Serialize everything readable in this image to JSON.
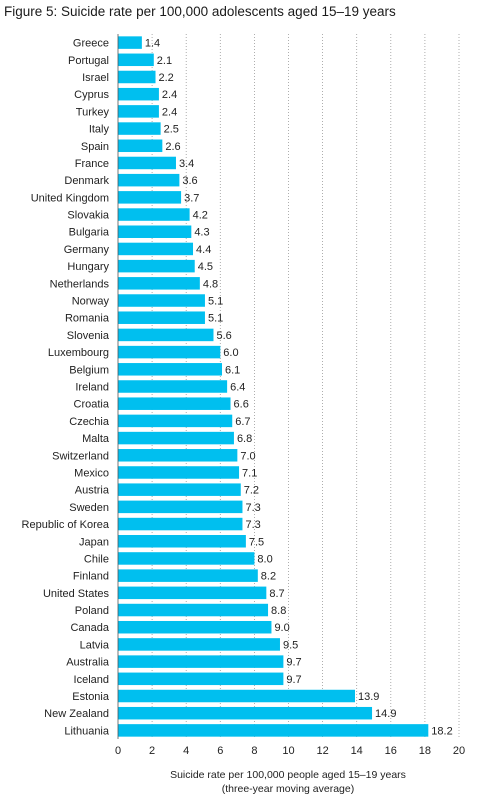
{
  "chart_data": {
    "type": "bar",
    "orientation": "horizontal",
    "title": "Figure 5: Suicide rate per 100,000 adolescents aged 15–19 years",
    "xlabel": "Suicide rate per 100,000 people aged 15–19 years",
    "xlabel_note": "(three-year moving average)",
    "xlim": [
      0,
      20
    ],
    "xticks": [
      "0",
      "2",
      "4",
      "6",
      "8",
      "10",
      "12",
      "14",
      "16",
      "18",
      "20"
    ],
    "grid": "vertical dotted",
    "bar_color": "#00BFEF",
    "categories": [
      "Greece",
      "Portugal",
      "Israel",
      "Cyprus",
      "Turkey",
      "Italy",
      "Spain",
      "France",
      "Denmark",
      "United Kingdom",
      "Slovakia",
      "Bulgaria",
      "Germany",
      "Hungary",
      "Netherlands",
      "Norway",
      "Romania",
      "Slovenia",
      "Luxembourg",
      "Belgium",
      "Ireland",
      "Croatia",
      "Czechia",
      "Malta",
      "Switzerland",
      "Mexico",
      "Austria",
      "Sweden",
      "Republic of Korea",
      "Japan",
      "Chile",
      "Finland",
      "United States",
      "Poland",
      "Canada",
      "Latvia",
      "Australia",
      "Iceland",
      "Estonia",
      "New Zealand",
      "Lithuania"
    ],
    "values": [
      1.4,
      2.1,
      2.2,
      2.4,
      2.4,
      2.5,
      2.6,
      3.4,
      3.6,
      3.7,
      4.2,
      4.3,
      4.4,
      4.5,
      4.8,
      5.1,
      5.1,
      5.6,
      6.0,
      6.1,
      6.4,
      6.6,
      6.7,
      6.8,
      7.0,
      7.1,
      7.2,
      7.3,
      7.3,
      7.5,
      8.0,
      8.2,
      8.7,
      8.8,
      9.0,
      9.5,
      9.7,
      9.7,
      13.9,
      14.9,
      18.2
    ],
    "value_labels": [
      "1.4",
      "2.1",
      "2.2",
      "2.4",
      "2.4",
      "2.5",
      "2.6",
      "3.4",
      "3.6",
      "3.7",
      "4.2",
      "4.3",
      "4.4",
      "4.5",
      "4.8",
      "5.1",
      "5.1",
      "5.6",
      "6.0",
      "6.1",
      "6.4",
      "6.6",
      "6.7",
      "6.8",
      "7.0",
      "7.1",
      "7.2",
      "7.3",
      "7.3",
      "7.5",
      "8.0",
      "8.2",
      "8.7",
      "8.8",
      "9.0",
      "9.5",
      "9.7",
      "9.7",
      "13.9",
      "14.9",
      "18.2"
    ]
  }
}
